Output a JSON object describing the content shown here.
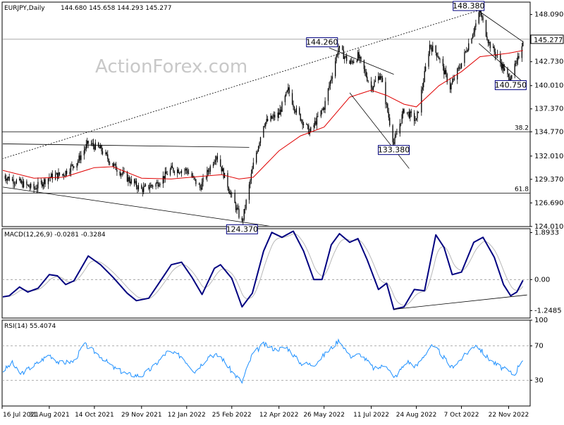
{
  "chart_data": [
    {
      "type": "candlestick",
      "title": "EURJPY,Daily",
      "ohlc_header": "144.680 145.658 144.293 145.277",
      "watermark": "ActionForex.com",
      "ylim": [
        124.0,
        149.5
      ],
      "y_ticks": [
        "148.090",
        "145.277",
        "142.730",
        "140.010",
        "137.370",
        "134.770",
        "132.010",
        "129.370",
        "126.690",
        "124.010"
      ],
      "last_price": 145.277,
      "ma_color": "#e00000",
      "candle_color": "#000000",
      "price_path": [
        [
          "16 Jul 2021",
          129.8
        ],
        [
          "2 Aug 2021",
          129.0
        ],
        [
          "16 Aug 2021",
          128.3
        ],
        [
          "31 Aug 2021",
          129.6
        ],
        [
          "14 Sep 2021",
          130.0
        ],
        [
          "28 Sep 2021",
          131.5
        ],
        [
          "8 Oct 2021",
          133.5
        ],
        [
          "20 Oct 2021",
          132.8
        ],
        [
          "1 Nov 2021",
          131.0
        ],
        [
          "15 Nov 2021",
          129.5
        ],
        [
          "29 Nov 2021",
          128.2
        ],
        [
          "14 Dec 2021",
          128.9
        ],
        [
          "28 Dec 2021",
          130.5
        ],
        [
          "12 Jan 2022",
          130.4
        ],
        [
          "25 Jan 2022",
          128.4
        ],
        [
          "10 Feb 2022",
          132.2
        ],
        [
          "25 Feb 2022",
          127.4
        ],
        [
          "7 Mar 2022",
          124.4
        ],
        [
          "18 Mar 2022",
          131.0
        ],
        [
          "28 Mar 2022",
          135.7
        ],
        [
          "12 Apr 2022",
          136.8
        ],
        [
          "21 Apr 2022",
          139.5
        ],
        [
          "28 Apr 2022",
          137.3
        ],
        [
          "12 May 2022",
          134.7
        ],
        [
          "26 May 2022",
          137.6
        ],
        [
          "9 Jun 2022",
          144.3
        ],
        [
          "20 Jun 2022",
          142.5
        ],
        [
          "28 Jun 2022",
          143.4
        ],
        [
          "11 Jul 2022",
          139.8
        ],
        [
          "20 Jul 2022",
          141.3
        ],
        [
          "2 Aug 2022",
          133.4
        ],
        [
          "12 Aug 2022",
          137.3
        ],
        [
          "24 Aug 2022",
          136.0
        ],
        [
          "6 Sep 2022",
          144.6
        ],
        [
          "14 Sep 2022",
          143.5
        ],
        [
          "26 Sep 2022",
          139.8
        ],
        [
          "7 Oct 2022",
          142.6
        ],
        [
          "21 Oct 2022",
          147.0
        ],
        [
          "25 Oct 2022",
          148.4
        ],
        [
          "3 Nov 2022",
          144.8
        ],
        [
          "11 Nov 2022",
          143.3
        ],
        [
          "22 Nov 2022",
          140.8
        ],
        [
          "30 Nov 2022",
          142.5
        ],
        [
          "6 Dec 2022",
          145.3
        ]
      ],
      "ma_path": [
        [
          "16 Jul 2021",
          130.4
        ],
        [
          "16 Aug 2021",
          129.5
        ],
        [
          "14 Sep 2021",
          129.6
        ],
        [
          "14 Oct 2021",
          130.7
        ],
        [
          "1 Nov 2021",
          130.8
        ],
        [
          "29 Nov 2021",
          129.5
        ],
        [
          "28 Dec 2021",
          129.4
        ],
        [
          "25 Jan 2022",
          129.7
        ],
        [
          "15 Feb 2022",
          129.9
        ],
        [
          "4 Mar 2022",
          129.4
        ],
        [
          "18 Mar 2022",
          129.6
        ],
        [
          "12 Apr 2022",
          132.6
        ],
        [
          "3 May 2022",
          134.3
        ],
        [
          "26 May 2022",
          135.3
        ],
        [
          "20 Jun 2022",
          138.7
        ],
        [
          "11 Jul 2022",
          139.5
        ],
        [
          "26 Jul 2022",
          138.9
        ],
        [
          "12 Aug 2022",
          137.9
        ],
        [
          "24 Aug 2022",
          137.6
        ],
        [
          "15 Sep 2022",
          140.0
        ],
        [
          "7 Oct 2022",
          141.6
        ],
        [
          "25 Oct 2022",
          143.3
        ],
        [
          "22 Nov 2022",
          143.7
        ],
        [
          "6 Dec 2022",
          144.0
        ]
      ],
      "fib_levels": [
        {
          "label": "38.2",
          "value": 134.77
        },
        {
          "label": "61.8",
          "value": 127.8
        }
      ],
      "horizontal_levels": [
        {
          "name": "resistance",
          "value": 145.277
        }
      ],
      "trendlines": [
        {
          "name": "rising-dotted",
          "style": "dotted",
          "from": [
            "16 Jul 2021",
            131.7
          ],
          "to": [
            "25 Oct 2022",
            148.6
          ]
        },
        {
          "name": "upper-range",
          "style": "solid",
          "from": [
            "16 Jul 2021",
            133.4
          ],
          "to": [
            "14 Mar 2022",
            133.0
          ]
        },
        {
          "name": "lower-range",
          "style": "solid",
          "from": [
            "16 Jul 2021",
            128.5
          ],
          "to": [
            "12 Apr 2022",
            123.9
          ]
        },
        {
          "name": "jun-channel-upper",
          "style": "solid",
          "from": [
            "31 May 2022",
            144.3
          ],
          "to": [
            "2 Aug 2022",
            141.3
          ]
        },
        {
          "name": "jun-channel-lower",
          "style": "solid",
          "from": [
            "20 Jun 2022",
            139.2
          ],
          "to": [
            "17 Aug 2022",
            130.6
          ]
        },
        {
          "name": "oct-channel-upper",
          "style": "solid",
          "from": [
            "25 Oct 2022",
            148.4
          ],
          "to": [
            "6 Dec 2022",
            145.0
          ]
        },
        {
          "name": "oct-channel-lower",
          "style": "solid",
          "from": [
            "24 Oct 2022",
            144.8
          ],
          "to": [
            "8 Dec 2022",
            140.2
          ]
        }
      ],
      "callouts": [
        {
          "text": "148.380",
          "value": 148.38,
          "date": "14 Oct 2022"
        },
        {
          "text": "144.260",
          "value": 144.26,
          "date": "24 May 2022"
        },
        {
          "text": "140.750",
          "value": 140.75,
          "date": "24 Nov 2022"
        },
        {
          "text": "133.380",
          "value": 133.38,
          "date": "2 Aug 2022"
        },
        {
          "text": "124.370",
          "value": 124.37,
          "date": "7 Mar 2022"
        }
      ]
    },
    {
      "type": "line",
      "title": "MACD(12,26,9) -0.0281 -0.3284",
      "ylim": [
        -1.55,
        2.05
      ],
      "y_ticks": [
        "1.8933",
        "0.00",
        "-1.2485"
      ],
      "zero_line": 0.0,
      "macd_color": "#000080",
      "signal_color": "#b8b8b8",
      "macd_path": [
        [
          "16 Jul 2021",
          -0.7
        ],
        [
          "23 Jul 2021",
          -0.65
        ],
        [
          "2 Aug 2021",
          -0.3
        ],
        [
          "10 Aug 2021",
          -0.5
        ],
        [
          "20 Aug 2021",
          -0.35
        ],
        [
          "31 Aug 2021",
          0.2
        ],
        [
          "8 Sep 2021",
          0.15
        ],
        [
          "16 Sep 2021",
          -0.2
        ],
        [
          "24 Sep 2021",
          -0.05
        ],
        [
          "8 Oct 2021",
          0.95
        ],
        [
          "20 Oct 2021",
          0.6
        ],
        [
          "1 Nov 2021",
          0.1
        ],
        [
          "15 Nov 2021",
          -0.55
        ],
        [
          "24 Nov 2021",
          -0.85
        ],
        [
          "6 Dec 2021",
          -0.75
        ],
        [
          "15 Dec 2021",
          -0.2
        ],
        [
          "28 Dec 2021",
          0.6
        ],
        [
          "7 Jan 2022",
          0.7
        ],
        [
          "17 Jan 2022",
          0.1
        ],
        [
          "27 Jan 2022",
          -0.6
        ],
        [
          "8 Feb 2022",
          0.45
        ],
        [
          "14 Feb 2022",
          0.6
        ],
        [
          "25 Feb 2022",
          0.05
        ],
        [
          "7 Mar 2022",
          -1.1
        ],
        [
          "17 Mar 2022",
          -0.55
        ],
        [
          "28 Mar 2022",
          1.15
        ],
        [
          "5 Apr 2022",
          1.9
        ],
        [
          "15 Apr 2022",
          1.7
        ],
        [
          "26 Apr 2022",
          1.95
        ],
        [
          "6 May 2022",
          1.15
        ],
        [
          "16 May 2022",
          0.0
        ],
        [
          "24 May 2022",
          0.0
        ],
        [
          "2 Jun 2022",
          1.4
        ],
        [
          "10 Jun 2022",
          1.85
        ],
        [
          "20 Jun 2022",
          1.5
        ],
        [
          "28 Jun 2022",
          1.65
        ],
        [
          "7 Jul 2022",
          0.8
        ],
        [
          "18 Jul 2022",
          -0.4
        ],
        [
          "26 Jul 2022",
          -0.15
        ],
        [
          "2 Aug 2022",
          -1.2
        ],
        [
          "12 Aug 2022",
          -1.1
        ],
        [
          "22 Aug 2022",
          -0.4
        ],
        [
          "1 Sep 2022",
          -0.45
        ],
        [
          "12 Sep 2022",
          1.8
        ],
        [
          "20 Sep 2022",
          1.3
        ],
        [
          "28 Sep 2022",
          0.2
        ],
        [
          "7 Oct 2022",
          0.3
        ],
        [
          "19 Oct 2022",
          1.5
        ],
        [
          "28 Oct 2022",
          1.7
        ],
        [
          "8 Nov 2022",
          0.9
        ],
        [
          "17 Nov 2022",
          -0.2
        ],
        [
          "24 Nov 2022",
          -0.65
        ],
        [
          "30 Nov 2022",
          -0.5
        ],
        [
          "6 Dec 2022",
          -0.03
        ]
      ],
      "support_line": {
        "from": [
          "2 Aug 2022",
          -1.2
        ],
        "to": [
          "10 Dec 2022",
          -0.62
        ]
      }
    },
    {
      "type": "line",
      "title": "RSI(14) 55.4074",
      "ylim": [
        0,
        100
      ],
      "y_ticks": [
        "100",
        "70",
        "30",
        "0"
      ],
      "levels": [
        70,
        30
      ],
      "rsi_color": "#1e90ff",
      "rsi_path": [
        [
          "16 Jul 2021",
          40
        ],
        [
          "26 Jul 2021",
          50
        ],
        [
          "2 Aug 2021",
          37
        ],
        [
          "16 Aug 2021",
          47
        ],
        [
          "31 Aug 2021",
          60
        ],
        [
          "10 Sep 2021",
          50
        ],
        [
          "24 Sep 2021",
          52
        ],
        [
          "4 Oct 2021",
          72
        ],
        [
          "20 Oct 2021",
          58
        ],
        [
          "1 Nov 2021",
          45
        ],
        [
          "15 Nov 2021",
          37
        ],
        [
          "29 Nov 2021",
          35
        ],
        [
          "10 Dec 2021",
          45
        ],
        [
          "24 Dec 2021",
          63
        ],
        [
          "7 Jan 2022",
          58
        ],
        [
          "20 Jan 2022",
          40
        ],
        [
          "4 Feb 2022",
          60
        ],
        [
          "14 Feb 2022",
          58
        ],
        [
          "25 Feb 2022",
          40
        ],
        [
          "7 Mar 2022",
          28
        ],
        [
          "17 Mar 2022",
          60
        ],
        [
          "28 Mar 2022",
          72
        ],
        [
          "8 Apr 2022",
          66
        ],
        [
          "20 Apr 2022",
          68
        ],
        [
          "3 May 2022",
          50
        ],
        [
          "16 May 2022",
          48
        ],
        [
          "30 May 2022",
          64
        ],
        [
          "10 Jun 2022",
          77
        ],
        [
          "20 Jun 2022",
          58
        ],
        [
          "1 Jul 2022",
          60
        ],
        [
          "14 Jul 2022",
          43
        ],
        [
          "26 Jul 2022",
          48
        ],
        [
          "2 Aug 2022",
          32
        ],
        [
          "15 Aug 2022",
          52
        ],
        [
          "24 Aug 2022",
          46
        ],
        [
          "7 Sep 2022",
          70
        ],
        [
          "15 Sep 2022",
          64
        ],
        [
          "27 Sep 2022",
          45
        ],
        [
          "7 Oct 2022",
          55
        ],
        [
          "21 Oct 2022",
          72
        ],
        [
          "31 Oct 2022",
          58
        ],
        [
          "10 Nov 2022",
          48
        ],
        [
          "22 Nov 2022",
          40
        ],
        [
          "28 Nov 2022",
          36
        ],
        [
          "2 Dec 2022",
          48
        ],
        [
          "6 Dec 2022",
          55
        ]
      ]
    }
  ],
  "x_axis": {
    "start": "16 Jul 2021",
    "end": "13 Dec 2022",
    "ticks": [
      "16 Jul 2021",
      "31 Aug 2021",
      "14 Oct 2021",
      "29 Nov 2021",
      "12 Jan 2022",
      "25 Feb 2022",
      "12 Apr 2022",
      "26 May 2022",
      "11 Jul 2022",
      "24 Aug 2022",
      "7 Oct 2022",
      "22 Nov 2022"
    ]
  }
}
